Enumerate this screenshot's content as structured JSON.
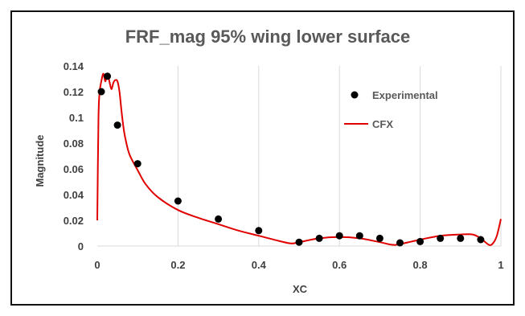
{
  "chart_data": {
    "type": "scatter",
    "title": "FRF_mag 95% wing lower surface",
    "xlabel": "XC",
    "ylabel": "Magnitude",
    "xlim": [
      0,
      1
    ],
    "ylim": [
      0,
      0.14
    ],
    "x_ticks": [
      "0",
      "0.2",
      "0.4",
      "0.6",
      "0.8",
      "1"
    ],
    "y_ticks": [
      "0",
      "0.02",
      "0.04",
      "0.06",
      "0.08",
      "0.1",
      "0.12",
      "0.14"
    ],
    "x_tick_values": [
      0,
      0.2,
      0.4,
      0.6,
      0.8,
      1.0
    ],
    "y_tick_values": [
      0,
      0.02,
      0.04,
      0.06,
      0.08,
      0.1,
      0.12,
      0.14
    ],
    "grid": "vertical",
    "legend_position": "right",
    "series": [
      {
        "name": "Experimental",
        "style": "markers",
        "color": "#000000",
        "x": [
          0.01,
          0.025,
          0.05,
          0.1,
          0.2,
          0.3,
          0.4,
          0.5,
          0.55,
          0.6,
          0.65,
          0.7,
          0.75,
          0.8,
          0.85,
          0.9,
          0.95
        ],
        "y": [
          0.12,
          0.132,
          0.094,
          0.064,
          0.035,
          0.021,
          0.012,
          0.003,
          0.006,
          0.008,
          0.008,
          0.006,
          0.0025,
          0.0035,
          0.006,
          0.006,
          0.005
        ]
      },
      {
        "name": "CFX",
        "style": "line",
        "color": "#e00000",
        "x": [
          0.0,
          0.003,
          0.006,
          0.01,
          0.015,
          0.02,
          0.025,
          0.03,
          0.035,
          0.04,
          0.045,
          0.05,
          0.055,
          0.06,
          0.065,
          0.07,
          0.08,
          0.1,
          0.12,
          0.15,
          0.2,
          0.25,
          0.3,
          0.35,
          0.4,
          0.45,
          0.48,
          0.5,
          0.55,
          0.6,
          0.65,
          0.7,
          0.73,
          0.75,
          0.8,
          0.85,
          0.9,
          0.93,
          0.95,
          0.97,
          0.98,
          0.99,
          1.0
        ],
        "y": [
          0.02,
          0.1,
          0.12,
          0.128,
          0.134,
          0.128,
          0.134,
          0.128,
          0.122,
          0.127,
          0.129,
          0.128,
          0.12,
          0.105,
          0.092,
          0.083,
          0.071,
          0.059,
          0.048,
          0.038,
          0.028,
          0.022,
          0.017,
          0.012,
          0.008,
          0.004,
          0.002,
          0.003,
          0.006,
          0.007,
          0.006,
          0.003,
          0.001,
          0.0015,
          0.005,
          0.008,
          0.009,
          0.009,
          0.006,
          0.001,
          0.002,
          0.008,
          0.021
        ]
      }
    ]
  }
}
